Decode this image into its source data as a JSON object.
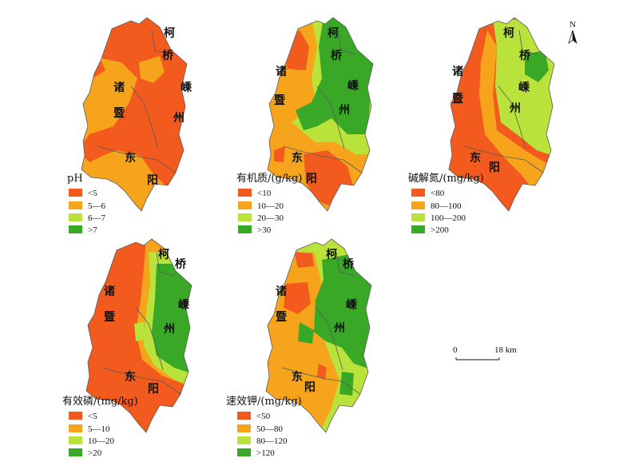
{
  "colors": {
    "c1": "#f25a1e",
    "c2": "#f5a41c",
    "c3": "#b9e23a",
    "c4": "#39a827"
  },
  "place_names": {
    "ke": "柯",
    "qiao": "桥",
    "zhu": "诸",
    "ji": "暨",
    "sheng": "嵊",
    "zhou": "州",
    "dong": "东",
    "yang": "阳"
  },
  "compass": {
    "label": "N"
  },
  "scale_bar": {
    "start": "0",
    "end": "18 km"
  },
  "maps": [
    {
      "title": "pH",
      "classes": [
        "<5",
        "5—6",
        "6—7",
        ">7"
      ]
    },
    {
      "title": "有机质/(g/kg)",
      "classes": [
        "<10",
        "10—20",
        "20—30",
        ">30"
      ]
    },
    {
      "title": "碱解氮/(mg/kg)",
      "classes": [
        "<80",
        "80—100",
        "100—200",
        ">200"
      ]
    },
    {
      "title": "有效磷/(mg/kg)",
      "classes": [
        "<5",
        "5—10",
        "10—20",
        ">20"
      ]
    },
    {
      "title": "速效钾/(mg/kg)",
      "classes": [
        "<50",
        "50—80",
        "80—120",
        ">120"
      ]
    }
  ]
}
